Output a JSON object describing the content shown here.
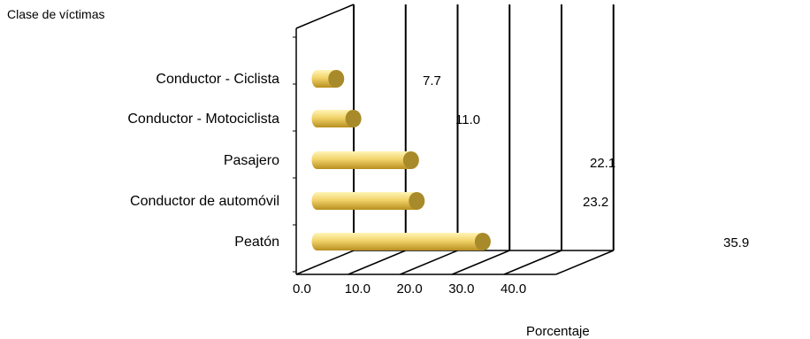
{
  "chart_data": {
    "type": "bar",
    "orientation": "horizontal",
    "title": "",
    "ylabel": "Clase de víctimas",
    "xlabel": "Porcentaje",
    "categories": [
      "Conductor - Ciclista",
      "Conductor - Motociclista",
      "Pasajero",
      "Conductor de automóvil",
      "Peatón"
    ],
    "values": [
      7.7,
      11.0,
      22.1,
      23.2,
      35.9
    ],
    "value_labels": [
      "7.7",
      "11.0",
      "22.1",
      "23.2",
      "35.9"
    ],
    "xlim": [
      0,
      50
    ],
    "ticks": [
      "0.0",
      "10.0",
      "20.0",
      "30.0",
      "40.0"
    ],
    "grid": true,
    "style": "3d-cylinder",
    "colors": {
      "bar": "#f2d36a",
      "bar_light": "#fff5b8",
      "bar_dark": "#b88f1f",
      "cap": "#a88a2a"
    }
  }
}
